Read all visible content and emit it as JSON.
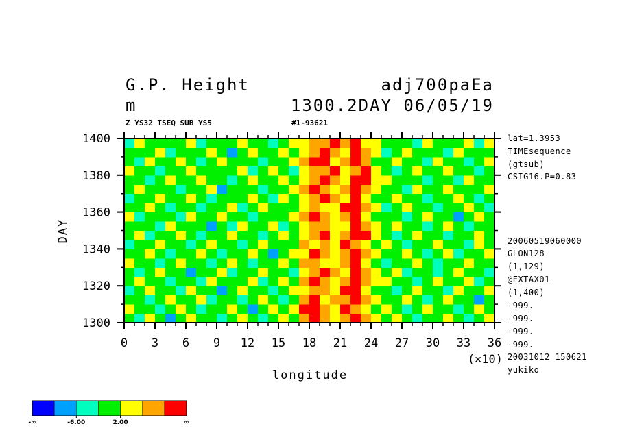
{
  "chart_data": {
    "type": "heatmap",
    "title": "G.P. Height",
    "title_right": "adj700paEa",
    "units": "m",
    "subtitle_right": "1300.2DAY 06/05/19",
    "caption_left": "Z YS32 TSEQ SUB YS5",
    "caption_mid": "#1-93621",
    "x_label": "longitude",
    "x_multiplier": "(×10)",
    "y_label": "DAY",
    "xlim": [
      0,
      36
    ],
    "ylim": [
      1300,
      1400
    ],
    "xticks": [
      0,
      3,
      6,
      9,
      12,
      15,
      18,
      21,
      24,
      27,
      30,
      33,
      36
    ],
    "yticks": [
      1300,
      1320,
      1340,
      1360,
      1380,
      1400
    ],
    "levels": [
      -10,
      -6,
      -2,
      2,
      6,
      10
    ],
    "colors": [
      "#0000ff",
      "#00a0ff",
      "#00ffbe",
      "#00f000",
      "#ffff00",
      "#ffa500",
      "#ff0000"
    ],
    "colorbar_ticks": [
      {
        "value": -6,
        "label": "-6.00"
      },
      {
        "value": 2,
        "label": "2.00"
      }
    ],
    "colorbar_end_labels": [
      "-∞",
      "∞"
    ],
    "annotations": [
      "lat=1.3953",
      "TIMEsequence",
      "(gtsub)",
      "CSIG16.P=0.83",
      "20060519060000",
      "GLON128",
      "(1,129)",
      "@EXTAX01",
      "(1,400)",
      "-999.",
      "-999.",
      "-999.",
      "-999.",
      "20031012 150621",
      "yukiko"
    ],
    "z": [
      [
        0,
        -3,
        3,
        0,
        -7,
        0,
        3,
        0,
        0,
        -3,
        0,
        3,
        0,
        -3,
        0,
        3,
        0,
        7,
        11,
        7,
        3,
        7,
        11,
        7,
        3,
        0,
        3,
        0,
        -3,
        0,
        0,
        3,
        0,
        -3,
        0,
        3
      ],
      [
        3,
        0,
        0,
        -3,
        0,
        3,
        0,
        -3,
        0,
        0,
        3,
        0,
        -7,
        0,
        3,
        0,
        3,
        11,
        11,
        7,
        3,
        11,
        7,
        3,
        0,
        3,
        0,
        -3,
        0,
        3,
        0,
        0,
        -3,
        0,
        3,
        0
      ],
      [
        0,
        0,
        -3,
        0,
        3,
        0,
        0,
        3,
        -3,
        0,
        0,
        -3,
        0,
        3,
        0,
        -3,
        0,
        7,
        11,
        3,
        7,
        7,
        11,
        7,
        3,
        0,
        0,
        3,
        0,
        -3,
        0,
        3,
        0,
        0,
        -7,
        0
      ],
      [
        -3,
        0,
        3,
        0,
        0,
        -3,
        3,
        0,
        0,
        -7,
        0,
        3,
        0,
        0,
        -3,
        0,
        3,
        3,
        7,
        7,
        3,
        11,
        11,
        3,
        0,
        0,
        -3,
        0,
        3,
        0,
        0,
        -3,
        3,
        0,
        0,
        3
      ],
      [
        0,
        3,
        0,
        0,
        -3,
        0,
        0,
        -3,
        3,
        0,
        0,
        0,
        3,
        -3,
        0,
        3,
        0,
        7,
        11,
        7,
        3,
        7,
        11,
        7,
        3,
        3,
        0,
        0,
        -3,
        0,
        3,
        0,
        0,
        3,
        -3,
        0
      ],
      [
        0,
        -3,
        0,
        3,
        0,
        0,
        -7,
        0,
        0,
        3,
        -3,
        0,
        0,
        3,
        0,
        0,
        -3,
        3,
        7,
        11,
        7,
        3,
        11,
        7,
        3,
        0,
        3,
        -3,
        0,
        0,
        -3,
        0,
        3,
        0,
        0,
        -3
      ],
      [
        3,
        0,
        0,
        -3,
        0,
        3,
        0,
        0,
        -3,
        0,
        3,
        0,
        -3,
        0,
        0,
        3,
        0,
        7,
        7,
        3,
        3,
        7,
        11,
        3,
        0,
        -3,
        0,
        0,
        3,
        0,
        -3,
        0,
        0,
        3,
        0,
        0
      ],
      [
        0,
        0,
        3,
        0,
        -3,
        0,
        0,
        3,
        0,
        -3,
        0,
        0,
        3,
        0,
        -7,
        0,
        3,
        3,
        11,
        7,
        3,
        7,
        11,
        7,
        3,
        0,
        0,
        3,
        0,
        -3,
        0,
        3,
        -3,
        0,
        0,
        3
      ],
      [
        -3,
        0,
        0,
        3,
        0,
        0,
        -3,
        0,
        3,
        0,
        0,
        -3,
        0,
        3,
        0,
        0,
        0,
        7,
        3,
        7,
        3,
        11,
        7,
        3,
        0,
        3,
        0,
        -3,
        0,
        0,
        3,
        0,
        0,
        -3,
        3,
        0
      ],
      [
        0,
        3,
        -3,
        0,
        0,
        3,
        0,
        -3,
        0,
        0,
        3,
        0,
        0,
        -3,
        0,
        3,
        0,
        3,
        7,
        11,
        3,
        7,
        11,
        11,
        3,
        0,
        -3,
        0,
        3,
        0,
        0,
        -3,
        0,
        0,
        3,
        0
      ],
      [
        0,
        0,
        0,
        -3,
        3,
        0,
        0,
        0,
        -7,
        0,
        -3,
        3,
        0,
        0,
        3,
        -3,
        0,
        3,
        7,
        7,
        3,
        3,
        11,
        7,
        3,
        0,
        3,
        0,
        0,
        -3,
        0,
        3,
        0,
        -3,
        0,
        0
      ],
      [
        3,
        -3,
        0,
        0,
        0,
        -3,
        3,
        0,
        0,
        3,
        0,
        0,
        -3,
        0,
        0,
        0,
        3,
        7,
        11,
        7,
        3,
        7,
        11,
        3,
        0,
        0,
        0,
        -3,
        0,
        3,
        0,
        0,
        -7,
        0,
        3,
        0
      ],
      [
        0,
        0,
        3,
        0,
        -3,
        0,
        0,
        -3,
        0,
        0,
        3,
        -3,
        0,
        3,
        0,
        0,
        0,
        3,
        7,
        3,
        3,
        11,
        11,
        7,
        3,
        -3,
        0,
        3,
        0,
        0,
        -3,
        0,
        0,
        3,
        0,
        -3
      ],
      [
        -3,
        0,
        0,
        3,
        0,
        0,
        3,
        0,
        -3,
        0,
        0,
        0,
        3,
        0,
        -3,
        3,
        0,
        3,
        7,
        11,
        7,
        3,
        11,
        3,
        0,
        0,
        3,
        0,
        0,
        -3,
        0,
        0,
        3,
        0,
        -3,
        0
      ],
      [
        0,
        3,
        0,
        0,
        0,
        -3,
        0,
        0,
        3,
        -7,
        0,
        0,
        0,
        -3,
        0,
        0,
        3,
        7,
        11,
        7,
        3,
        7,
        11,
        7,
        3,
        0,
        0,
        -3,
        3,
        0,
        0,
        3,
        0,
        0,
        0,
        3
      ],
      [
        0,
        0,
        -3,
        0,
        3,
        0,
        0,
        3,
        0,
        0,
        -3,
        0,
        3,
        0,
        0,
        3,
        0,
        3,
        7,
        11,
        7,
        3,
        11,
        11,
        3,
        3,
        0,
        0,
        0,
        -3,
        0,
        0,
        -3,
        3,
        0,
        0
      ],
      [
        3,
        0,
        0,
        -3,
        0,
        0,
        3,
        0,
        0,
        0,
        0,
        3,
        -3,
        0,
        3,
        0,
        -3,
        3,
        7,
        7,
        11,
        3,
        7,
        11,
        3,
        0,
        -3,
        0,
        3,
        0,
        0,
        3,
        0,
        0,
        -3,
        0
      ],
      [
        0,
        -3,
        3,
        0,
        0,
        3,
        0,
        -3,
        0,
        3,
        0,
        0,
        0,
        -3,
        0,
        0,
        3,
        7,
        11,
        11,
        3,
        7,
        11,
        7,
        0,
        0,
        3,
        0,
        0,
        -3,
        3,
        0,
        0,
        -3,
        0,
        3
      ],
      [
        0,
        0,
        0,
        3,
        -3,
        0,
        0,
        0,
        3,
        0,
        -7,
        0,
        3,
        0,
        0,
        3,
        0,
        3,
        7,
        11,
        7,
        3,
        11,
        7,
        3,
        -3,
        0,
        3,
        0,
        0,
        0,
        -3,
        3,
        0,
        0,
        0
      ],
      [
        -3,
        3,
        0,
        0,
        0,
        0,
        3,
        -3,
        0,
        0,
        0,
        3,
        0,
        0,
        -3,
        0,
        3,
        3,
        7,
        7,
        11,
        7,
        11,
        3,
        3,
        0,
        0,
        0,
        -3,
        3,
        0,
        0,
        0,
        3,
        -3,
        3
      ]
    ]
  }
}
